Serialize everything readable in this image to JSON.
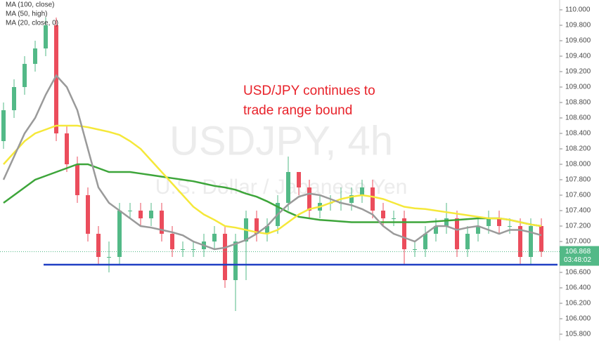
{
  "chart_data": {
    "type": "candlestick",
    "watermark": "USDJPY, 4h",
    "watermark_subtitle": "U.S. Dollar / Japanese Yen",
    "annotation": [
      "USD/JPY continues to",
      "trade range bound"
    ],
    "up_color": "#53b987",
    "down_color": "#eb4d5c",
    "open": [
      108.3,
      108.7,
      109.0,
      109.3,
      109.5,
      109.8,
      108.4,
      108.0,
      107.6,
      107.1,
      106.8,
      106.8,
      107.4,
      107.4,
      107.3,
      107.4,
      107.1,
      106.9,
      106.9,
      106.9,
      107.0,
      107.1,
      106.5,
      107.0,
      107.3,
      107.1,
      107.2,
      107.5,
      107.9,
      107.7,
      107.4,
      107.5,
      107.5,
      107.5,
      107.6,
      107.7,
      107.4,
      107.3,
      107.3,
      106.9,
      106.9,
      107.1,
      107.2,
      107.3,
      106.9,
      107.1,
      107.2,
      107.3,
      107.2,
      107.2,
      106.8,
      107.2
    ],
    "high": [
      108.8,
      109.1,
      109.4,
      109.6,
      109.9,
      109.9,
      108.5,
      108.1,
      107.7,
      107.2,
      107.0,
      107.5,
      107.5,
      107.5,
      107.5,
      107.5,
      107.2,
      107.0,
      107.0,
      107.1,
      107.2,
      107.2,
      107.1,
      107.4,
      107.4,
      107.3,
      107.6,
      108.1,
      107.9,
      107.8,
      107.6,
      107.6,
      107.7,
      107.7,
      107.8,
      107.8,
      107.5,
      107.4,
      107.4,
      107.0,
      107.2,
      107.3,
      107.5,
      107.4,
      107.2,
      107.3,
      107.4,
      107.4,
      107.3,
      107.3,
      107.3,
      107.3
    ],
    "low": [
      108.2,
      108.6,
      108.9,
      109.2,
      109.4,
      108.3,
      107.9,
      107.5,
      107.0,
      106.7,
      106.6,
      106.7,
      107.3,
      107.2,
      107.2,
      107.0,
      106.8,
      106.8,
      106.8,
      106.8,
      106.9,
      106.4,
      106.1,
      106.5,
      107.0,
      107.0,
      107.1,
      107.4,
      107.6,
      107.3,
      107.3,
      107.4,
      107.4,
      107.4,
      107.5,
      107.3,
      107.2,
      107.2,
      106.7,
      106.8,
      106.8,
      107.0,
      107.1,
      106.8,
      106.8,
      107.0,
      107.1,
      107.1,
      107.1,
      106.7,
      106.7,
      106.8
    ],
    "close": [
      108.7,
      109.0,
      109.3,
      109.5,
      109.8,
      108.4,
      108.0,
      107.6,
      107.1,
      106.8,
      106.8,
      107.4,
      107.4,
      107.3,
      107.4,
      107.1,
      106.9,
      106.9,
      106.9,
      107.0,
      107.1,
      106.5,
      107.0,
      107.3,
      107.1,
      107.2,
      107.5,
      107.9,
      107.7,
      107.4,
      107.5,
      107.5,
      107.5,
      107.6,
      107.7,
      107.4,
      107.3,
      107.3,
      106.9,
      106.9,
      107.1,
      107.2,
      107.3,
      106.9,
      107.1,
      107.2,
      107.3,
      107.2,
      107.2,
      106.8,
      107.2,
      106.868
    ],
    "series": [
      {
        "name": "MA (100, close)",
        "color": "#3da53a",
        "values": [
          107.5,
          107.6,
          107.7,
          107.8,
          107.85,
          107.9,
          107.95,
          108.0,
          108.0,
          107.95,
          107.9,
          107.9,
          107.9,
          107.88,
          107.86,
          107.84,
          107.82,
          107.8,
          107.78,
          107.75,
          107.72,
          107.7,
          107.67,
          107.62,
          107.58,
          107.52,
          107.45,
          107.38,
          107.32,
          107.3,
          107.28,
          107.27,
          107.26,
          107.25,
          107.25,
          107.25,
          107.25,
          107.25,
          107.25,
          107.25,
          107.25,
          107.26,
          107.27,
          107.28,
          107.29,
          107.3,
          107.3,
          107.3,
          107.28,
          107.25,
          107.22,
          107.2
        ]
      },
      {
        "name": "MA (50, high)",
        "color": "#f5e83a",
        "values": [
          108.0,
          108.15,
          108.3,
          108.4,
          108.45,
          108.5,
          108.5,
          108.5,
          108.48,
          108.45,
          108.42,
          108.38,
          108.3,
          108.2,
          108.05,
          107.9,
          107.75,
          107.6,
          107.45,
          107.35,
          107.28,
          107.2,
          107.18,
          107.15,
          107.12,
          107.1,
          107.15,
          107.25,
          107.35,
          107.42,
          107.45,
          107.5,
          107.55,
          107.58,
          107.6,
          107.58,
          107.55,
          107.5,
          107.45,
          107.43,
          107.42,
          107.4,
          107.38,
          107.36,
          107.34,
          107.32,
          107.3,
          107.3,
          107.28,
          107.25,
          107.22,
          107.2
        ]
      },
      {
        "name": "MA (20, close, 0)",
        "color": "#9a9a9a",
        "values": [
          107.8,
          108.1,
          108.4,
          108.6,
          108.9,
          109.15,
          109.0,
          108.7,
          108.2,
          107.7,
          107.5,
          107.4,
          107.3,
          107.2,
          107.18,
          107.15,
          107.12,
          107.08,
          107.0,
          106.95,
          106.9,
          106.92,
          106.97,
          107.02,
          107.1,
          107.2,
          107.35,
          107.48,
          107.58,
          107.62,
          107.6,
          107.55,
          107.5,
          107.47,
          107.42,
          107.35,
          107.2,
          107.1,
          107.05,
          107.0,
          107.1,
          107.2,
          107.2,
          107.15,
          107.18,
          107.2,
          107.15,
          107.1,
          107.15,
          107.15,
          107.12,
          107.08
        ]
      }
    ],
    "support_level": 106.7,
    "support_color": "#1f3fc4",
    "current_price": {
      "value": 106.868,
      "label": "106.868"
    },
    "countdown": "03:48:02",
    "ylim": [
      105.8,
      110.0
    ],
    "yticks": [
      {
        "value": 105.8,
        "label": "105.800"
      },
      {
        "value": 106.0,
        "label": "106.000"
      },
      {
        "value": 106.2,
        "label": "106.200"
      },
      {
        "value": 106.4,
        "label": "106.400"
      },
      {
        "value": 106.6,
        "label": "106.600"
      },
      {
        "value": 106.8,
        "label": "106.800"
      },
      {
        "value": 107.0,
        "label": "107.000"
      },
      {
        "value": 107.2,
        "label": "107.200"
      },
      {
        "value": 107.4,
        "label": "107.400"
      },
      {
        "value": 107.6,
        "label": "107.600"
      },
      {
        "value": 107.8,
        "label": "107.800"
      },
      {
        "value": 108.0,
        "label": "108.000"
      },
      {
        "value": 108.2,
        "label": "108.200"
      },
      {
        "value": 108.4,
        "label": "108.400"
      },
      {
        "value": 108.6,
        "label": "108.600"
      },
      {
        "value": 108.8,
        "label": "108.800"
      },
      {
        "value": 109.0,
        "label": "109.000"
      },
      {
        "value": 109.2,
        "label": "109.200"
      },
      {
        "value": 109.4,
        "label": "109.400"
      },
      {
        "value": 109.6,
        "label": "109.600"
      },
      {
        "value": 109.8,
        "label": "109.800"
      },
      {
        "value": 110.0,
        "label": "110.000"
      }
    ]
  }
}
